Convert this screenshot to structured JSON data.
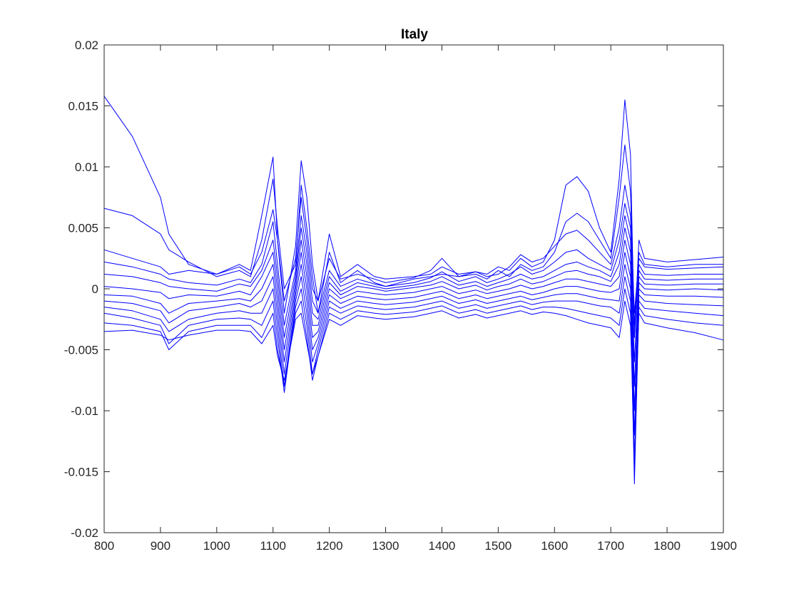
{
  "chart_data": {
    "type": "line",
    "title": "Italy",
    "xlabel": "",
    "ylabel": "",
    "xlim": [
      800,
      1900
    ],
    "ylim": [
      -0.02,
      0.02
    ],
    "x_ticks": [
      800,
      900,
      1000,
      1100,
      1200,
      1300,
      1400,
      1500,
      1600,
      1700,
      1800,
      1900
    ],
    "y_ticks": [
      -0.02,
      -0.015,
      -0.01,
      -0.005,
      0,
      0.005,
      0.01,
      0.015,
      0.02
    ],
    "x_tick_labels": [
      "800",
      "900",
      "1000",
      "1100",
      "1200",
      "1300",
      "1400",
      "1500",
      "1600",
      "1700",
      "1800",
      "1900"
    ],
    "y_tick_labels": [
      "-0.02",
      "-0.015",
      "-0.01",
      "-0.005",
      "0",
      "0.005",
      "0.01",
      "0.015",
      "0.02"
    ],
    "grid": false,
    "legend": "none",
    "line_color": "#0000ff",
    "x": [
      800,
      850,
      900,
      915,
      950,
      1000,
      1040,
      1060,
      1080,
      1100,
      1108,
      1120,
      1140,
      1150,
      1160,
      1170,
      1180,
      1200,
      1220,
      1250,
      1280,
      1300,
      1350,
      1380,
      1400,
      1430,
      1460,
      1480,
      1500,
      1520,
      1540,
      1560,
      1580,
      1600,
      1620,
      1640,
      1660,
      1680,
      1700,
      1715,
      1725,
      1735,
      1742,
      1750,
      1760,
      1800,
      1850,
      1900
    ],
    "series": [
      {
        "values": [
          0.0158,
          0.0125,
          0.0075,
          0.0045,
          0.002,
          0.0012,
          0.002,
          0.0015,
          0.006,
          0.0108,
          0.004,
          -0.002,
          0.0035,
          0.0105,
          0.0075,
          0.002,
          -0.001,
          0.0045,
          0.001,
          0.002,
          0.001,
          0.0008,
          0.001,
          0.0012,
          0.0018,
          0.0012,
          0.0014,
          0.0012,
          0.0018,
          0.0015,
          0.0025,
          0.0018,
          0.0022,
          0.004,
          0.0085,
          0.0092,
          0.008,
          0.005,
          0.003,
          0.009,
          0.0155,
          0.011,
          -0.004,
          0.004,
          0.0025,
          0.0022,
          0.0024,
          0.0026
        ]
      },
      {
        "values": [
          0.0066,
          0.006,
          0.0045,
          0.0032,
          0.0022,
          0.001,
          0.0015,
          0.001,
          0.004,
          0.009,
          0.005,
          0.0,
          0.002,
          0.0085,
          0.005,
          0.001,
          -0.002,
          0.003,
          0.0005,
          0.0015,
          0.0005,
          0.0002,
          0.0008,
          0.001,
          0.0012,
          0.001,
          0.0012,
          0.0008,
          0.0015,
          0.001,
          0.002,
          0.0015,
          0.0018,
          0.003,
          0.0055,
          0.0062,
          0.0055,
          0.004,
          0.0025,
          0.0075,
          0.0118,
          0.008,
          -0.003,
          0.003,
          0.002,
          0.0018,
          0.002,
          0.002
        ]
      },
      {
        "values": [
          0.0032,
          0.0025,
          0.0018,
          0.0012,
          0.0015,
          0.0012,
          0.0018,
          0.0012,
          0.003,
          0.0065,
          0.004,
          -0.001,
          0.0025,
          0.0075,
          0.004,
          0.0,
          -0.001,
          0.0025,
          0.0008,
          0.0012,
          0.0008,
          0.0005,
          0.0009,
          0.0015,
          0.0025,
          0.001,
          0.0014,
          0.001,
          0.0012,
          0.0018,
          0.0028,
          0.0022,
          0.0025,
          0.0035,
          0.0045,
          0.0048,
          0.004,
          0.003,
          0.002,
          0.005,
          0.0085,
          0.006,
          -0.002,
          0.0025,
          0.0018,
          0.0016,
          0.0017,
          0.0018
        ]
      },
      {
        "values": [
          0.0022,
          0.0018,
          0.0012,
          0.0008,
          0.0005,
          0.0003,
          0.0008,
          0.0005,
          0.002,
          0.0055,
          0.002,
          -0.003,
          0.0015,
          0.006,
          0.003,
          -0.001,
          -0.002,
          0.0015,
          0.0002,
          0.0008,
          0.0004,
          0.0002,
          0.0005,
          0.0009,
          0.0014,
          0.0006,
          0.001,
          0.0005,
          0.0008,
          0.0012,
          0.0018,
          0.0012,
          0.0015,
          0.0022,
          0.003,
          0.0032,
          0.0025,
          0.002,
          0.0015,
          0.004,
          0.007,
          0.005,
          -0.004,
          0.002,
          0.0012,
          0.0011,
          0.0012,
          0.0012
        ]
      },
      {
        "values": [
          0.0012,
          0.001,
          0.0005,
          0.0002,
          0.0,
          -0.0002,
          0.0004,
          0.0002,
          0.0015,
          0.004,
          0.001,
          -0.004,
          0.001,
          0.005,
          0.002,
          -0.002,
          -0.0025,
          0.001,
          -0.0002,
          0.0005,
          0.0002,
          0.0,
          0.0003,
          0.0006,
          0.001,
          0.0003,
          0.0006,
          0.0002,
          0.0005,
          0.0008,
          0.0012,
          0.0008,
          0.001,
          0.0015,
          0.002,
          0.0022,
          0.0018,
          0.0015,
          0.001,
          0.003,
          0.006,
          0.004,
          -0.006,
          0.0015,
          0.0008,
          0.0007,
          0.0008,
          0.0008
        ]
      },
      {
        "values": [
          0.0002,
          0.0,
          -0.0003,
          -0.0008,
          -0.0005,
          -0.0006,
          -0.0002,
          -0.0005,
          0.001,
          0.003,
          0.0,
          -0.005,
          0.0005,
          0.004,
          0.001,
          -0.003,
          -0.003,
          0.0005,
          -0.0005,
          0.0002,
          0.0,
          -0.0002,
          0.0001,
          0.0003,
          0.0006,
          0.0,
          0.0003,
          -0.0001,
          0.0002,
          0.0004,
          0.0008,
          0.0004,
          0.0006,
          0.001,
          0.0014,
          0.0015,
          0.0012,
          0.001,
          0.0006,
          0.002,
          0.005,
          0.003,
          -0.008,
          0.001,
          0.0004,
          0.0003,
          0.0004,
          0.0004
        ]
      },
      {
        "values": [
          -0.0005,
          -0.0006,
          -0.0012,
          -0.002,
          -0.0012,
          -0.001,
          -0.0008,
          -0.001,
          0.0,
          0.002,
          -0.001,
          -0.006,
          0.0,
          0.003,
          0.0,
          -0.004,
          -0.0035,
          0.0,
          -0.0008,
          -0.0002,
          -0.0004,
          -0.0005,
          -0.0003,
          0.0,
          0.0002,
          -0.0004,
          -0.0001,
          -0.0004,
          -0.0002,
          0.0,
          0.0003,
          0.0,
          0.0002,
          0.0005,
          0.0008,
          0.0008,
          0.0006,
          0.0004,
          0.0002,
          0.001,
          0.004,
          0.002,
          -0.01,
          0.0005,
          0.0,
          -0.0001,
          0.0,
          -0.0001
        ]
      },
      {
        "values": [
          -0.001,
          -0.0012,
          -0.0018,
          -0.0028,
          -0.0018,
          -0.0015,
          -0.0012,
          -0.0015,
          -0.001,
          0.001,
          -0.002,
          -0.007,
          -0.0005,
          0.002,
          -0.001,
          -0.005,
          -0.004,
          -0.0005,
          -0.0012,
          -0.0006,
          -0.0008,
          -0.0009,
          -0.0007,
          -0.0004,
          -0.0002,
          -0.0008,
          -0.0005,
          -0.0008,
          -0.0006,
          -0.0004,
          -0.0002,
          -0.0005,
          -0.0003,
          0.0,
          0.0002,
          0.0002,
          0.0,
          -0.0002,
          -0.0003,
          0.0,
          0.003,
          0.001,
          -0.012,
          0.0,
          -0.0005,
          -0.0006,
          -0.0006,
          -0.0007
        ]
      },
      {
        "values": [
          -0.0015,
          -0.0018,
          -0.0025,
          -0.0035,
          -0.0025,
          -0.002,
          -0.0018,
          -0.002,
          -0.002,
          0.0,
          -0.003,
          -0.008,
          -0.001,
          0.001,
          -0.002,
          -0.006,
          -0.0045,
          -0.001,
          -0.0016,
          -0.001,
          -0.0012,
          -0.0013,
          -0.0011,
          -0.0008,
          -0.0006,
          -0.0012,
          -0.0009,
          -0.0012,
          -0.001,
          -0.0008,
          -0.0006,
          -0.0009,
          -0.0007,
          -0.0005,
          -0.0004,
          -0.0004,
          -0.0006,
          -0.0008,
          -0.0009,
          -0.001,
          0.002,
          0.0,
          -0.014,
          -0.0005,
          -0.001,
          -0.0012,
          -0.0013,
          -0.0014
        ]
      },
      {
        "values": [
          -0.002,
          -0.0024,
          -0.003,
          -0.0045,
          -0.003,
          -0.0025,
          -0.0024,
          -0.0025,
          -0.003,
          -0.001,
          -0.004,
          -0.0085,
          -0.0015,
          0.0,
          -0.003,
          -0.007,
          -0.005,
          -0.0015,
          -0.002,
          -0.0014,
          -0.0016,
          -0.0017,
          -0.0015,
          -0.0012,
          -0.001,
          -0.0016,
          -0.0013,
          -0.0016,
          -0.0014,
          -0.0012,
          -0.001,
          -0.0013,
          -0.0011,
          -0.001,
          -0.001,
          -0.001,
          -0.0012,
          -0.0014,
          -0.0015,
          -0.002,
          0.001,
          -0.001,
          -0.016,
          -0.001,
          -0.0016,
          -0.0018,
          -0.002,
          -0.0022
        ]
      },
      {
        "values": [
          -0.0028,
          -0.003,
          -0.0035,
          -0.005,
          -0.0035,
          -0.003,
          -0.003,
          -0.003,
          -0.004,
          -0.002,
          -0.005,
          -0.008,
          -0.002,
          -0.001,
          -0.004,
          -0.0075,
          -0.0055,
          -0.002,
          -0.0025,
          -0.0018,
          -0.002,
          -0.0021,
          -0.0019,
          -0.0016,
          -0.0014,
          -0.002,
          -0.0017,
          -0.002,
          -0.0018,
          -0.0016,
          -0.0014,
          -0.0017,
          -0.0015,
          -0.0015,
          -0.0016,
          -0.0018,
          -0.002,
          -0.0022,
          -0.0024,
          -0.003,
          0.0,
          -0.002,
          -0.015,
          -0.0015,
          -0.0022,
          -0.0025,
          -0.0028,
          -0.003
        ]
      },
      {
        "values": [
          -0.0035,
          -0.0034,
          -0.0038,
          -0.0042,
          -0.0038,
          -0.0034,
          -0.0034,
          -0.0035,
          -0.0045,
          -0.003,
          -0.0055,
          -0.0075,
          -0.0025,
          -0.002,
          -0.0045,
          -0.007,
          -0.0055,
          -0.0025,
          -0.003,
          -0.0022,
          -0.0024,
          -0.0025,
          -0.0023,
          -0.002,
          -0.0018,
          -0.0024,
          -0.0021,
          -0.0024,
          -0.0022,
          -0.002,
          -0.0018,
          -0.0021,
          -0.0019,
          -0.002,
          -0.0022,
          -0.0025,
          -0.0028,
          -0.003,
          -0.0032,
          -0.004,
          -0.001,
          -0.003,
          -0.012,
          -0.002,
          -0.0028,
          -0.0032,
          -0.0036,
          -0.0042
        ]
      }
    ]
  }
}
